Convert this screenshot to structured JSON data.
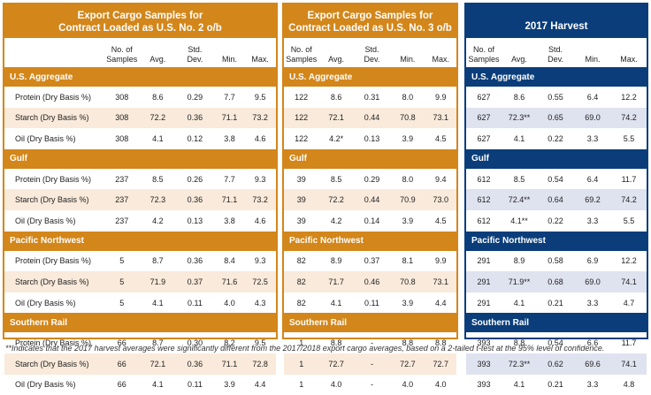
{
  "panels": [
    {
      "title_line1": "Export Cargo Samples for",
      "title_line2": "Contract Loaded as U.S. No. 2 o/b",
      "color": "#d3861a"
    },
    {
      "title_line1": "Export Cargo Samples for",
      "title_line2": "Contract Loaded as U.S. No. 3 o/b",
      "color": "#d3861a"
    },
    {
      "title_line1": "2017 Harvest",
      "title_line2": "",
      "color": "#0a3d7a"
    }
  ],
  "columns": {
    "samples_l1": "No. of",
    "samples_l2": "Samples",
    "avg": "Avg.",
    "std_l1": "Std.",
    "std_l2": "Dev.",
    "min": "Min.",
    "max": "Max."
  },
  "row_labels": [
    "Protein (Dry Basis %)",
    "Starch (Dry Basis %)",
    "Oil (Dry Basis %)"
  ],
  "sections": [
    {
      "name": "U.S. Aggregate",
      "p1": [
        [
          "308",
          "8.6",
          "0.29",
          "7.7",
          "9.5"
        ],
        [
          "308",
          "72.2",
          "0.36",
          "71.1",
          "73.2"
        ],
        [
          "308",
          "4.1",
          "0.12",
          "3.8",
          "4.6"
        ]
      ],
      "p2": [
        [
          "122",
          "8.6",
          "0.31",
          "8.0",
          "9.9"
        ],
        [
          "122",
          "72.1",
          "0.44",
          "70.8",
          "73.1"
        ],
        [
          "122",
          "4.2*",
          "0.13",
          "3.9",
          "4.5"
        ]
      ],
      "p3": [
        [
          "627",
          "8.6",
          "0.55",
          "6.4",
          "12.2"
        ],
        [
          "627",
          "72.3**",
          "0.65",
          "69.0",
          "74.2"
        ],
        [
          "627",
          "4.1",
          "0.22",
          "3.3",
          "5.5"
        ]
      ]
    },
    {
      "name": "Gulf",
      "p1": [
        [
          "237",
          "8.5",
          "0.26",
          "7.7",
          "9.3"
        ],
        [
          "237",
          "72.3",
          "0.36",
          "71.1",
          "73.2"
        ],
        [
          "237",
          "4.2",
          "0.13",
          "3.8",
          "4.6"
        ]
      ],
      "p2": [
        [
          "39",
          "8.5",
          "0.29",
          "8.0",
          "9.4"
        ],
        [
          "39",
          "72.2",
          "0.44",
          "70.9",
          "73.0"
        ],
        [
          "39",
          "4.2",
          "0.14",
          "3.9",
          "4.5"
        ]
      ],
      "p3": [
        [
          "612",
          "8.5",
          "0.54",
          "6.4",
          "11.7"
        ],
        [
          "612",
          "72.4**",
          "0.64",
          "69.2",
          "74.2"
        ],
        [
          "612",
          "4.1**",
          "0.22",
          "3.3",
          "5.5"
        ]
      ]
    },
    {
      "name": "Pacific Northwest",
      "p1": [
        [
          "5",
          "8.7",
          "0.36",
          "8.4",
          "9.3"
        ],
        [
          "5",
          "71.9",
          "0.37",
          "71.6",
          "72.5"
        ],
        [
          "5",
          "4.1",
          "0.11",
          "4.0",
          "4.3"
        ]
      ],
      "p2": [
        [
          "82",
          "8.9",
          "0.37",
          "8.1",
          "9.9"
        ],
        [
          "82",
          "71.7",
          "0.46",
          "70.8",
          "73.1"
        ],
        [
          "82",
          "4.1",
          "0.11",
          "3.9",
          "4.4"
        ]
      ],
      "p3": [
        [
          "291",
          "8.9",
          "0.58",
          "6.9",
          "12.2"
        ],
        [
          "291",
          "71.9**",
          "0.68",
          "69.0",
          "74.1"
        ],
        [
          "291",
          "4.1",
          "0.21",
          "3.3",
          "4.7"
        ]
      ]
    },
    {
      "name": "Southern Rail",
      "p1": [
        [
          "66",
          "8.7",
          "0.30",
          "8.2",
          "9.5"
        ],
        [
          "66",
          "72.1",
          "0.36",
          "71.1",
          "72.8"
        ],
        [
          "66",
          "4.1",
          "0.11",
          "3.9",
          "4.4"
        ]
      ],
      "p2": [
        [
          "1",
          "8.8",
          "-",
          "8.8",
          "8.8"
        ],
        [
          "1",
          "72.7",
          "-",
          "72.7",
          "72.7"
        ],
        [
          "1",
          "4.0",
          "-",
          "4.0",
          "4.0"
        ]
      ],
      "p3": [
        [
          "393",
          "8.8",
          "0.54",
          "6.6",
          "11.7"
        ],
        [
          "393",
          "72.3**",
          "0.62",
          "69.6",
          "74.1"
        ],
        [
          "393",
          "4.1",
          "0.21",
          "3.3",
          "4.8"
        ]
      ]
    }
  ],
  "footnote": "**Indicates that the 2017 harvest averages were significantly different from the 2017/2018 export cargo averages, based on a 2-tailed t-test at the 95% level of confidence."
}
